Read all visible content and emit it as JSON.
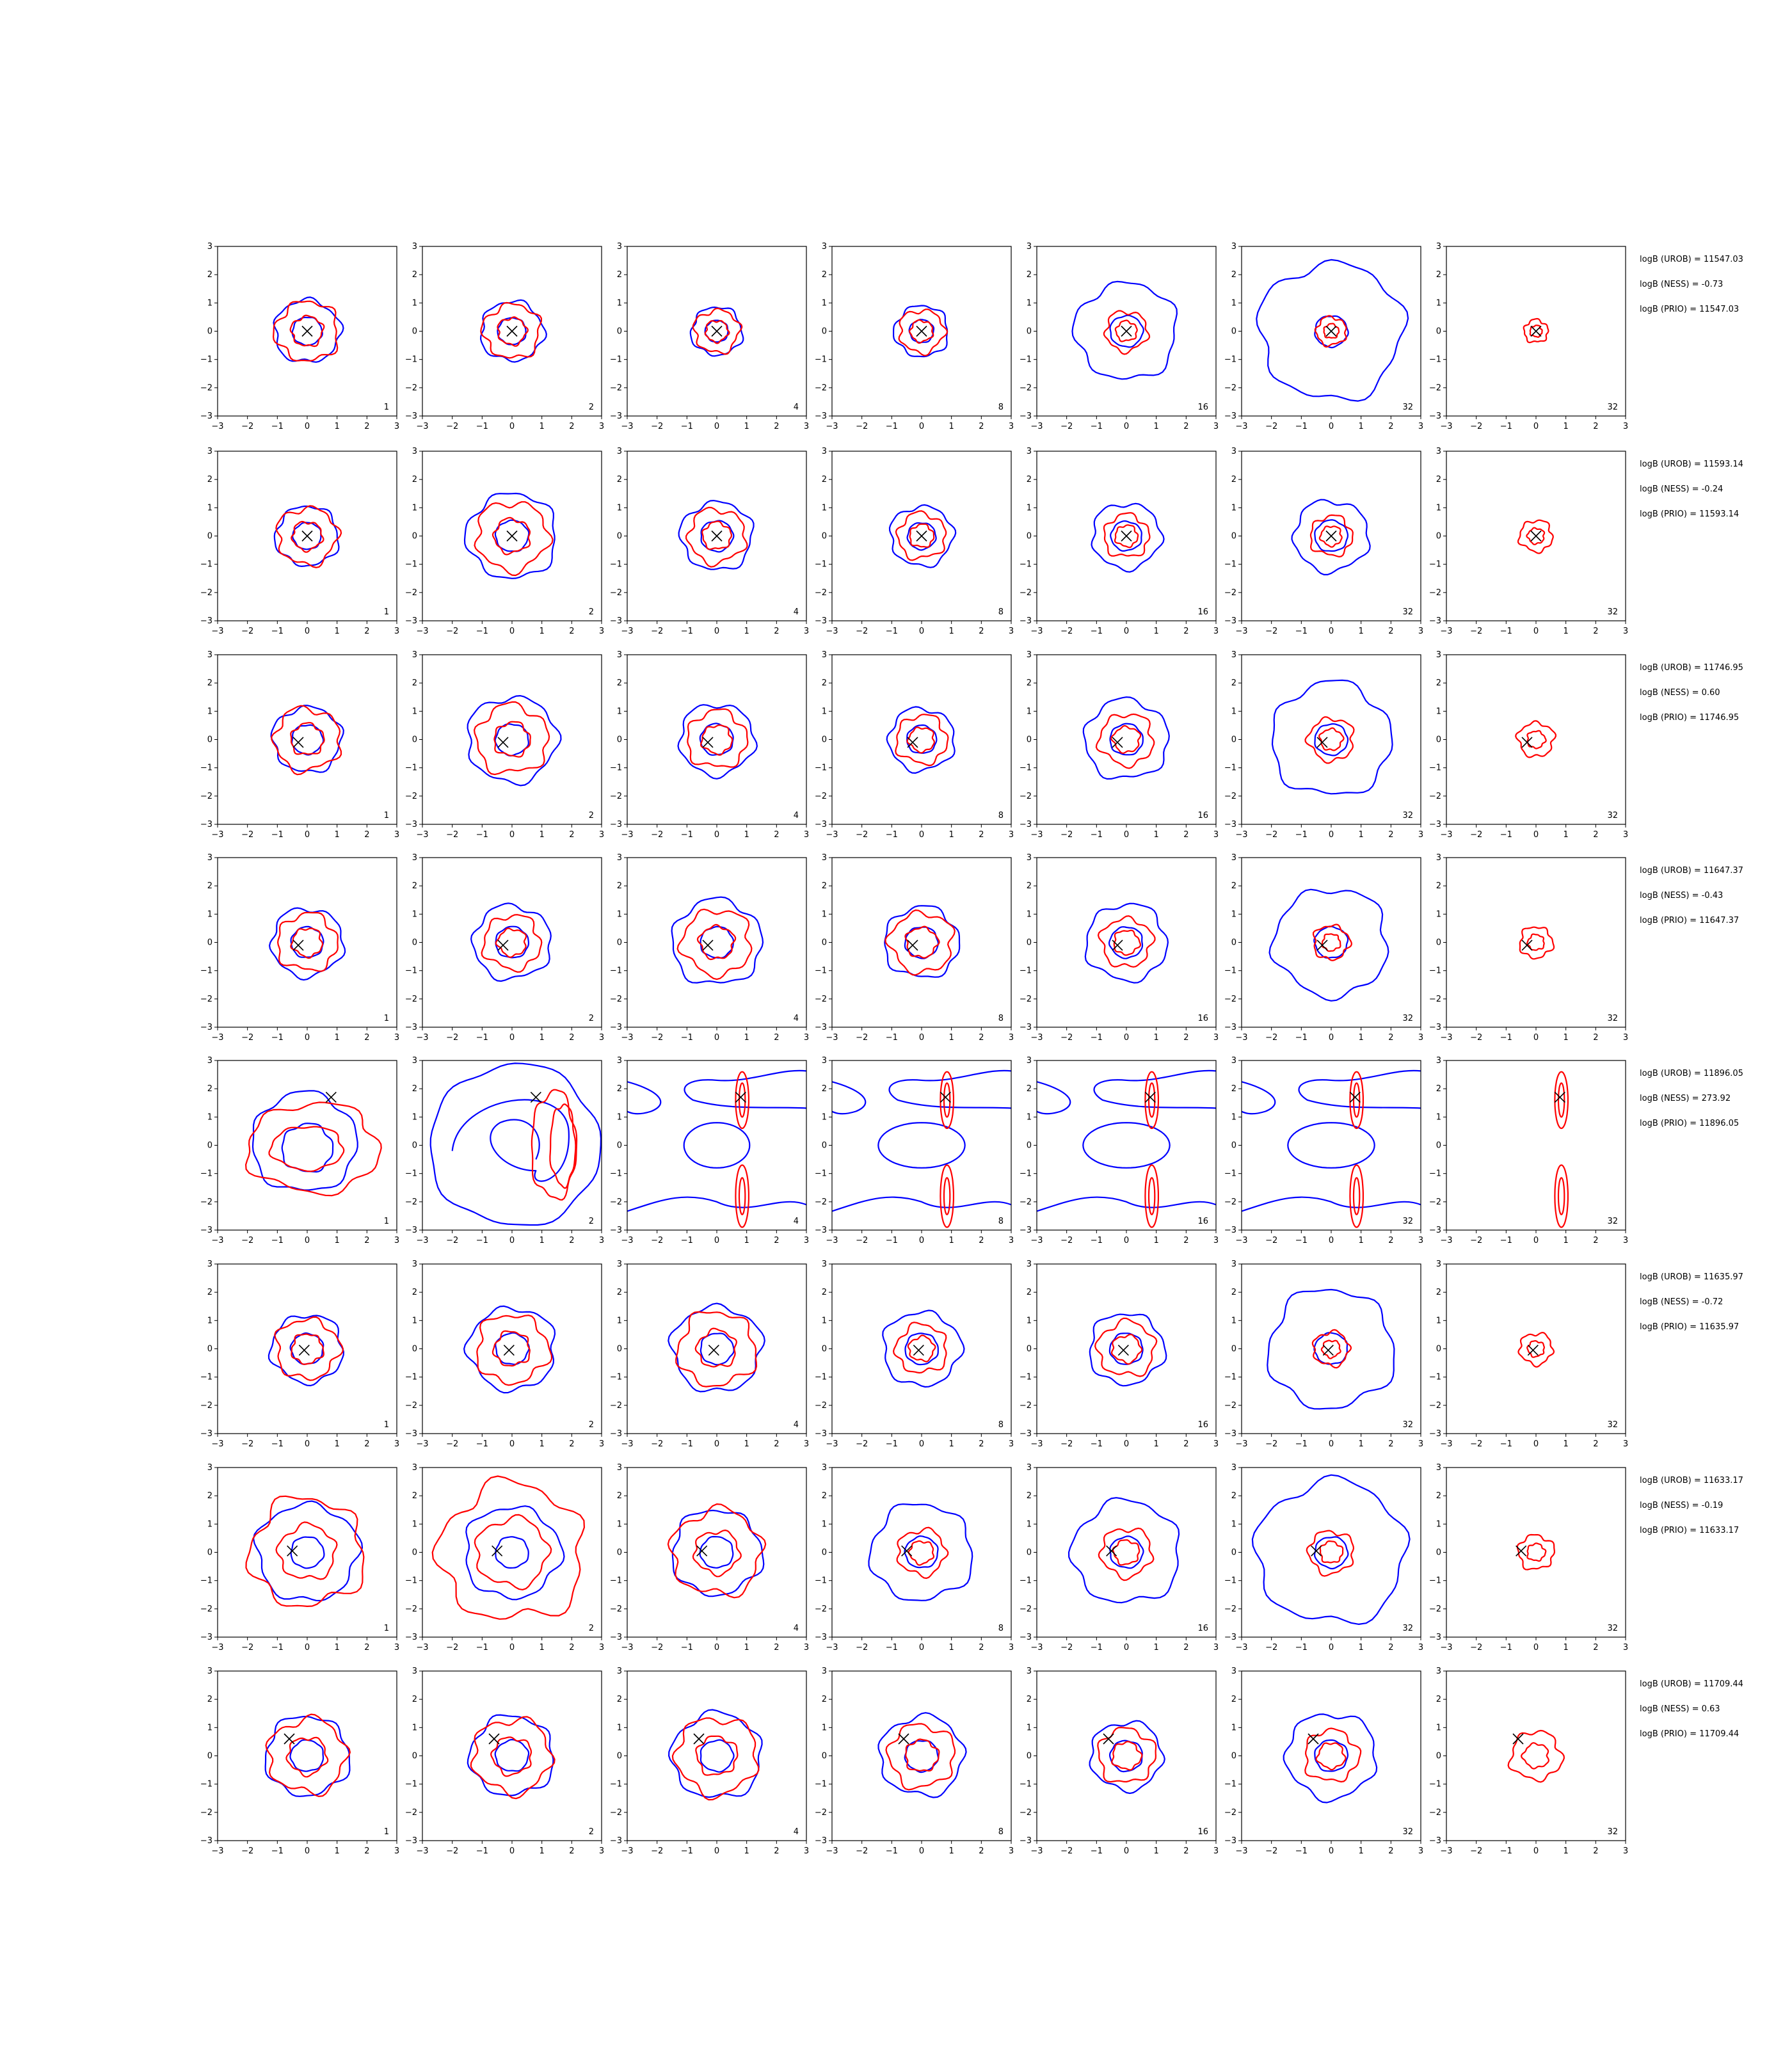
{
  "chart_data": {
    "type": "contour-grid",
    "title": "",
    "xlim": [
      -3,
      3
    ],
    "ylim": [
      -3,
      3
    ],
    "x_ticks": [
      "−3",
      "−2",
      "−1",
      "0",
      "1",
      "2",
      "3"
    ],
    "y_ticks": [
      "3",
      "2",
      "1",
      "0",
      "−1",
      "−2",
      "−3"
    ],
    "column_labels": [
      "1",
      "2",
      "4",
      "8",
      "16",
      "32",
      "32"
    ],
    "series_colors": {
      "blue": "#0000ff",
      "red": "#ff0000",
      "marker": "#000000"
    },
    "rows": [
      {
        "marker": [
          0.0,
          0.0
        ],
        "stats": [
          "logB (UROB) = 11547.03",
          "logB (NESS) = -0.73",
          "logB (PRIO) = 11547.03"
        ],
        "blue_radius": [
          1.1,
          1.05,
          0.85,
          0.9,
          1.7,
          2.4,
          0
        ],
        "red_radius": [
          1.05,
          0.95,
          0.75,
          0.75,
          0.7,
          0.5,
          0.4
        ],
        "style": "round"
      },
      {
        "marker": [
          0.0,
          0.0
        ],
        "stats": [
          "logB (UROB) = 11593.14",
          "logB (NESS) = -0.24",
          "logB (PRIO) = 11593.14"
        ],
        "blue_radius": [
          1.05,
          1.5,
          1.2,
          1.05,
          1.15,
          1.25,
          0
        ],
        "red_radius": [
          1.0,
          1.2,
          0.95,
          0.8,
          0.75,
          0.7,
          0.55
        ],
        "style": "round"
      },
      {
        "marker": [
          -0.3,
          -0.1
        ],
        "stats": [
          "logB (UROB) = 11746.95",
          "logB (NESS) = 0.60",
          "logB (PRIO) = 11746.95"
        ],
        "blue_radius": [
          1.15,
          1.5,
          1.25,
          1.1,
          1.4,
          2.0,
          0
        ],
        "red_radius": [
          1.1,
          1.2,
          1.0,
          0.85,
          0.9,
          0.75,
          0.6
        ],
        "style": "round"
      },
      {
        "marker": [
          -0.3,
          -0.1
        ],
        "stats": [
          "logB (UROB) = 11647.37",
          "logB (NESS) = -0.43",
          "logB (PRIO) = 11647.37"
        ],
        "blue_radius": [
          1.2,
          1.3,
          1.5,
          1.25,
          1.35,
          1.9,
          0
        ],
        "red_radius": [
          1.0,
          0.95,
          1.15,
          1.05,
          0.85,
          0.6,
          0.55
        ],
        "style": "round"
      },
      {
        "marker": [
          0.8,
          1.7
        ],
        "stats": [
          "logB (UROB) = 11896.05",
          "logB (NESS) = 273.92",
          "logB (PRIO) = 11896.05"
        ],
        "style": "bands"
      },
      {
        "marker": [
          -0.1,
          -0.05
        ],
        "stats": [
          "logB (UROB) = 11635.97",
          "logB (NESS) = -0.72",
          "logB (PRIO) = 11635.97"
        ],
        "blue_radius": [
          1.2,
          1.45,
          1.5,
          1.3,
          1.25,
          2.1,
          0
        ],
        "red_radius": [
          1.05,
          1.2,
          1.3,
          0.85,
          0.95,
          0.6,
          0.55
        ],
        "style": "round"
      },
      {
        "marker": [
          -0.5,
          0.05
        ],
        "stats": [
          "logB (UROB) = 11633.17",
          "logB (NESS) = -0.19",
          "logB (PRIO) = 11633.17"
        ],
        "blue_radius": [
          1.7,
          1.6,
          1.5,
          1.7,
          1.8,
          2.5,
          0
        ],
        "red_radius": [
          1.9,
          2.4,
          1.5,
          0.8,
          0.85,
          0.75,
          0.6
        ],
        "style": "round"
      },
      {
        "marker": [
          -0.6,
          0.6
        ],
        "stats": [
          "logB (UROB) = 11709.44",
          "logB (NESS) = 0.63",
          "logB (PRIO) = 11709.44"
        ],
        "blue_radius": [
          1.4,
          1.4,
          1.5,
          1.4,
          1.2,
          1.5,
          0
        ],
        "red_radius": [
          1.3,
          1.3,
          1.35,
          1.1,
          0.95,
          0.9,
          0.85
        ],
        "style": "round"
      }
    ]
  }
}
